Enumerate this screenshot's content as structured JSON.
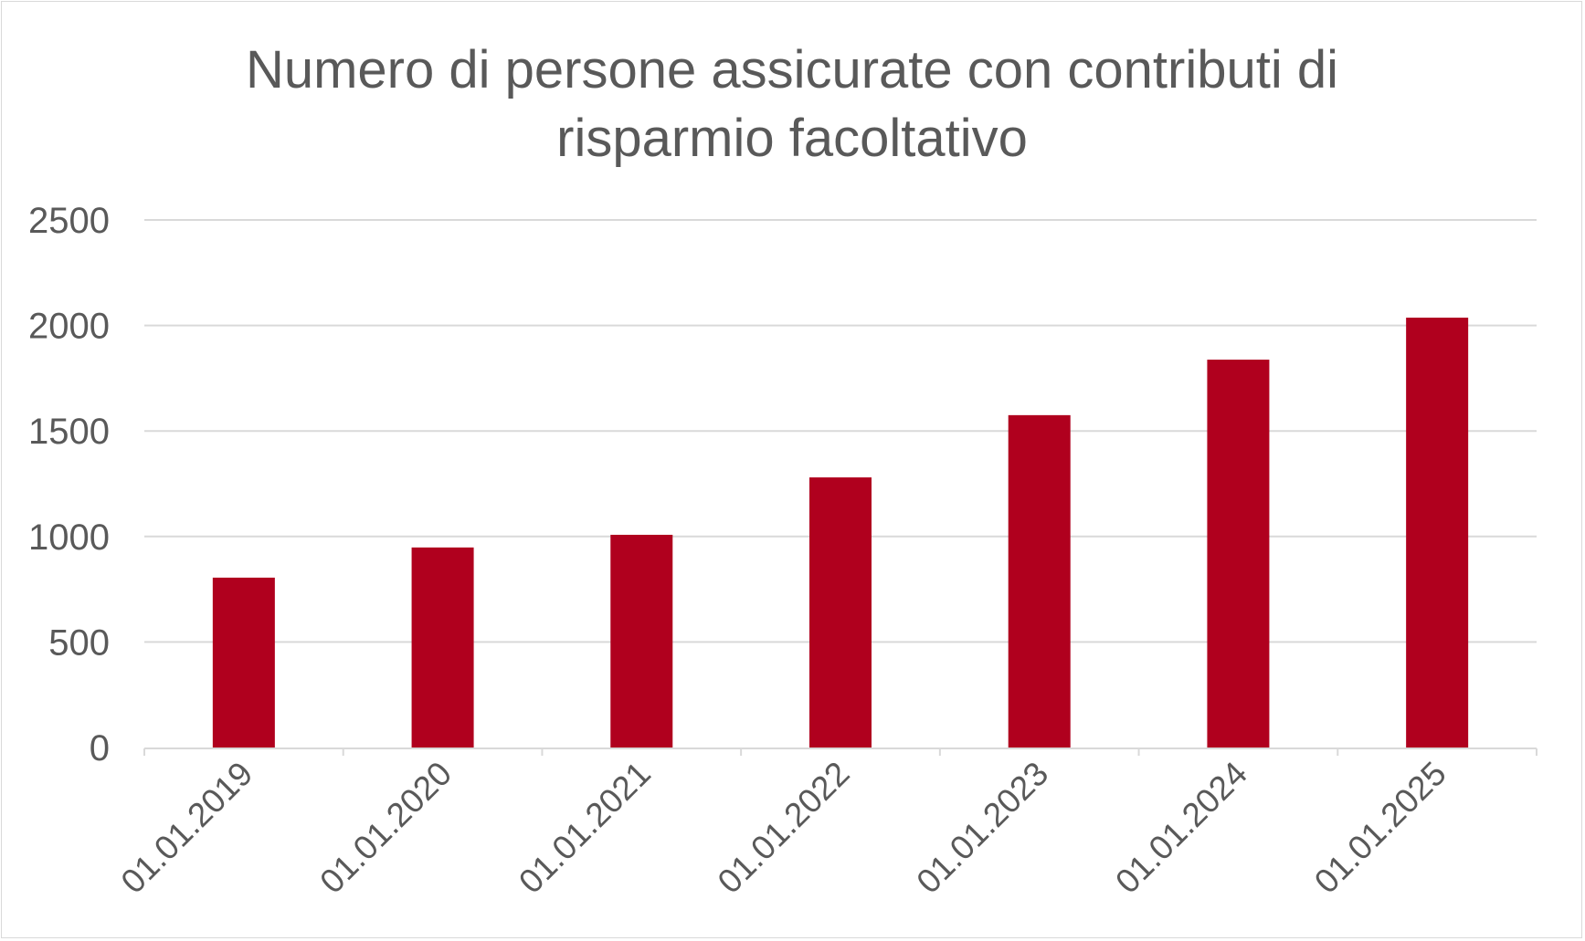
{
  "chart_data": {
    "type": "bar",
    "title_lines": [
      "Numero di persone assicurate con contributi di",
      "risparmio facoltativo"
    ],
    "categories": [
      "01.01.2019",
      "01.01.2020",
      "01.01.2021",
      "01.01.2022",
      "01.01.2023",
      "01.01.2024",
      "01.01.2025"
    ],
    "values": [
      805,
      948,
      1008,
      1280,
      1575,
      1838,
      2037
    ],
    "ylim": [
      0,
      2500
    ],
    "yticks": [
      0,
      500,
      1000,
      1500,
      2000,
      2500
    ],
    "grid": true,
    "bar_color": "#b0001e",
    "grid_color": "#d9d9d9",
    "text_color": "#595959",
    "legend": "none"
  }
}
